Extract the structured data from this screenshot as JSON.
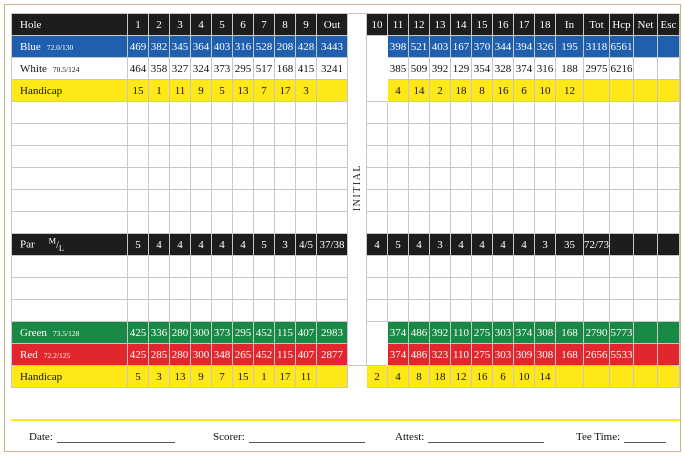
{
  "header": {
    "hole_label": "Hole",
    "front_holes": [
      "1",
      "2",
      "3",
      "4",
      "5",
      "6",
      "7",
      "8",
      "9"
    ],
    "out_label": "Out",
    "initial_label": "INITIAL",
    "back_holes": [
      "10",
      "11",
      "12",
      "13",
      "14",
      "15",
      "16",
      "17",
      "18"
    ],
    "in_label": "In",
    "tot_label": "Tot",
    "hcp_label": "Hcp",
    "net_label": "Net",
    "esc_label": "Esc"
  },
  "blue": {
    "name": "Blue",
    "rating": "72.0/130",
    "front": [
      "469",
      "382",
      "345",
      "364",
      "403",
      "316",
      "528",
      "208",
      "428"
    ],
    "out": "3443",
    "back": [
      "398",
      "521",
      "403",
      "167",
      "370",
      "344",
      "394",
      "326",
      "195"
    ],
    "in": "3118",
    "tot": "6561"
  },
  "white": {
    "name": "White",
    "rating": "70.5/124",
    "front": [
      "464",
      "358",
      "327",
      "324",
      "373",
      "295",
      "517",
      "168",
      "415"
    ],
    "out": "3241",
    "back": [
      "385",
      "509",
      "392",
      "129",
      "354",
      "328",
      "374",
      "316",
      "188"
    ],
    "in": "2975",
    "tot": "6216"
  },
  "handicap_mens": {
    "name": "Handicap",
    "front": [
      "15",
      "1",
      "11",
      "9",
      "5",
      "13",
      "7",
      "17",
      "3"
    ],
    "back": [
      "4",
      "14",
      "2",
      "18",
      "8",
      "16",
      "6",
      "10",
      "12"
    ]
  },
  "par": {
    "name": "Par",
    "ml_m": "M",
    "ml_l": "L",
    "front": [
      "5",
      "4",
      "4",
      "4",
      "4",
      "4",
      "5",
      "3",
      "4/5"
    ],
    "out": "37/38",
    "back": [
      "4",
      "5",
      "4",
      "3",
      "4",
      "4",
      "4",
      "4",
      "3"
    ],
    "in": "35",
    "tot": "72/73"
  },
  "green": {
    "name": "Green",
    "rating": "73.5/128",
    "front": [
      "425",
      "336",
      "280",
      "300",
      "373",
      "295",
      "452",
      "115",
      "407"
    ],
    "out": "2983",
    "back": [
      "374",
      "486",
      "392",
      "110",
      "275",
      "303",
      "374",
      "308",
      "168"
    ],
    "in": "2790",
    "tot": "5773"
  },
  "red": {
    "name": "Red",
    "rating": "72.2/125",
    "front": [
      "425",
      "285",
      "280",
      "300",
      "348",
      "265",
      "452",
      "115",
      "407"
    ],
    "out": "2877",
    "back": [
      "374",
      "486",
      "323",
      "110",
      "275",
      "303",
      "309",
      "308",
      "168"
    ],
    "in": "2656",
    "tot": "5533"
  },
  "handicap_ladies": {
    "name": "Handicap",
    "front": [
      "5",
      "3",
      "13",
      "9",
      "7",
      "15",
      "1",
      "17",
      "11"
    ],
    "back": [
      "2",
      "4",
      "8",
      "18",
      "12",
      "16",
      "6",
      "10",
      "14"
    ]
  },
  "footer": {
    "date_label": "Date:",
    "scorer_label": "Scorer:",
    "attest_label": "Attest:",
    "tee_time_label": "Tee Time:"
  },
  "colors": {
    "blue": "#1f5fae",
    "yellow": "#ffe81a",
    "green": "#198a46",
    "red": "#e2262d",
    "black": "#1d1d1d"
  }
}
